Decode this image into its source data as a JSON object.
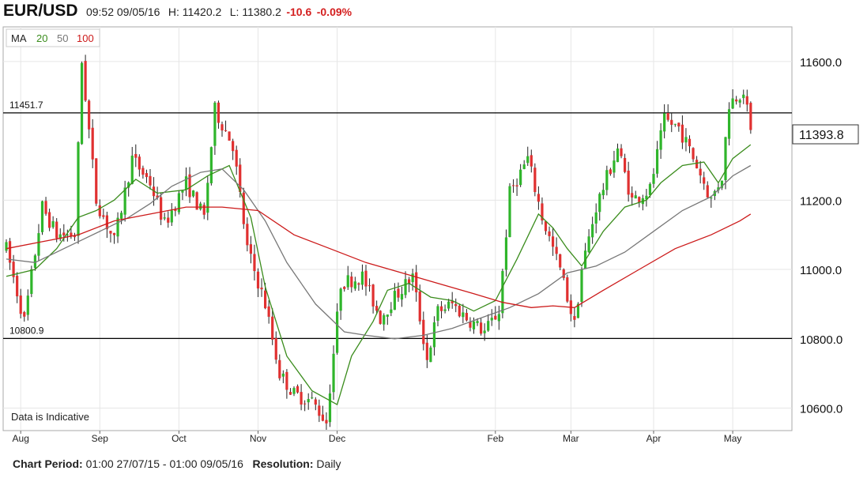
{
  "header": {
    "symbol": "EUR/USD",
    "time": "09:52 09/05/16",
    "high": "H: 11420.2",
    "low": "L: 11380.2",
    "change": "-10.6",
    "change_pct": "-0.09%"
  },
  "legend": {
    "label": "MA",
    "ma20": "20",
    "ma50": "50",
    "ma100": "100",
    "ma20_color": "#3a8c1c",
    "ma50_color": "#777777",
    "ma100_color": "#cc1a1a"
  },
  "indicative_note": "Data is Indicative",
  "footer": {
    "period_label": "Chart Period:",
    "period_value": "01:00 27/07/15 - 01:00 09/05/16",
    "resolution_label": "Resolution:",
    "resolution_value": "Daily"
  },
  "chart_data": {
    "type": "candlestick",
    "symbol": "EUR/USD",
    "y_ticks": [
      "11600.0",
      "11200.0",
      "11000.0",
      "10800.0",
      "10600.0"
    ],
    "y_tick_values": [
      11600,
      11200,
      11000,
      10800,
      10600
    ],
    "ylim": [
      10535,
      11700
    ],
    "last_price": "11393.8",
    "x_labels": [
      "Aug",
      "Sep",
      "Oct",
      "Nov",
      "Dec",
      "Feb",
      "Mar",
      "Apr",
      "May"
    ],
    "x_label_day_index": [
      4,
      26,
      48,
      70,
      92,
      136,
      157,
      180,
      202
    ],
    "total_days": 215,
    "horizontal_lines": [
      {
        "label": "11451.7",
        "value": 11451.7
      },
      {
        "label": "10800.9",
        "value": 10800.9
      }
    ],
    "colors": {
      "up": "#2fb52b",
      "down": "#e03030",
      "wick": "#222222",
      "grid": "#e6e6e6",
      "line": "#000000"
    },
    "anchors": [
      [
        0,
        11060
      ],
      [
        5,
        10850
      ],
      [
        10,
        11180
      ],
      [
        14,
        11100
      ],
      [
        19,
        11100
      ],
      [
        21,
        11600
      ],
      [
        25,
        11200
      ],
      [
        30,
        11080
      ],
      [
        35,
        11320
      ],
      [
        40,
        11250
      ],
      [
        44,
        11130
      ],
      [
        50,
        11250
      ],
      [
        55,
        11150
      ],
      [
        58,
        11460
      ],
      [
        63,
        11360
      ],
      [
        67,
        11060
      ],
      [
        72,
        10900
      ],
      [
        76,
        10700
      ],
      [
        80,
        10640
      ],
      [
        85,
        10620
      ],
      [
        89,
        10560
      ],
      [
        93,
        10960
      ],
      [
        99,
        10980
      ],
      [
        104,
        10860
      ],
      [
        108,
        10920
      ],
      [
        113,
        10980
      ],
      [
        117,
        10740
      ],
      [
        120,
        10880
      ],
      [
        124,
        10900
      ],
      [
        128,
        10860
      ],
      [
        133,
        10820
      ],
      [
        137,
        10880
      ],
      [
        140,
        11220
      ],
      [
        145,
        11320
      ],
      [
        149,
        11150
      ],
      [
        154,
        11000
      ],
      [
        158,
        10840
      ],
      [
        160,
        11000
      ],
      [
        164,
        11180
      ],
      [
        170,
        11350
      ],
      [
        174,
        11200
      ],
      [
        179,
        11230
      ],
      [
        183,
        11430
      ],
      [
        187,
        11410
      ],
      [
        192,
        11300
      ],
      [
        196,
        11200
      ],
      [
        199,
        11270
      ],
      [
        201,
        11480
      ],
      [
        205,
        11520
      ],
      [
        207,
        11393.8
      ]
    ],
    "ma": {
      "ma20": {
        "name": "20",
        "points": [
          [
            0,
            10980
          ],
          [
            8,
            11000
          ],
          [
            14,
            11060
          ],
          [
            20,
            11150
          ],
          [
            25,
            11170
          ],
          [
            30,
            11200
          ],
          [
            36,
            11260
          ],
          [
            42,
            11220
          ],
          [
            50,
            11230
          ],
          [
            56,
            11270
          ],
          [
            62,
            11300
          ],
          [
            68,
            11150
          ],
          [
            72,
            10950
          ],
          [
            78,
            10750
          ],
          [
            85,
            10650
          ],
          [
            92,
            10610
          ],
          [
            96,
            10750
          ],
          [
            102,
            10850
          ],
          [
            106,
            10940
          ],
          [
            112,
            10960
          ],
          [
            118,
            10920
          ],
          [
            124,
            10910
          ],
          [
            130,
            10880
          ],
          [
            136,
            10910
          ],
          [
            142,
            11030
          ],
          [
            148,
            11160
          ],
          [
            152,
            11120
          ],
          [
            156,
            11060
          ],
          [
            160,
            11010
          ],
          [
            166,
            11110
          ],
          [
            172,
            11180
          ],
          [
            178,
            11200
          ],
          [
            182,
            11250
          ],
          [
            188,
            11300
          ],
          [
            194,
            11310
          ],
          [
            198,
            11250
          ],
          [
            202,
            11320
          ],
          [
            207,
            11360
          ]
        ]
      },
      "ma50": {
        "name": "50",
        "points": [
          [
            0,
            11030
          ],
          [
            8,
            11020
          ],
          [
            16,
            11060
          ],
          [
            22,
            11090
          ],
          [
            28,
            11120
          ],
          [
            34,
            11150
          ],
          [
            40,
            11190
          ],
          [
            46,
            11240
          ],
          [
            54,
            11280
          ],
          [
            60,
            11290
          ],
          [
            66,
            11230
          ],
          [
            72,
            11140
          ],
          [
            78,
            11020
          ],
          [
            86,
            10900
          ],
          [
            94,
            10820
          ],
          [
            100,
            10810
          ],
          [
            108,
            10800
          ],
          [
            116,
            10810
          ],
          [
            124,
            10830
          ],
          [
            132,
            10860
          ],
          [
            140,
            10890
          ],
          [
            148,
            10930
          ],
          [
            156,
            10990
          ],
          [
            164,
            11010
          ],
          [
            172,
            11050
          ],
          [
            180,
            11110
          ],
          [
            188,
            11170
          ],
          [
            196,
            11210
          ],
          [
            202,
            11270
          ],
          [
            207,
            11300
          ]
        ]
      },
      "ma100": {
        "name": "100",
        "points": [
          [
            0,
            11060
          ],
          [
            10,
            11080
          ],
          [
            20,
            11100
          ],
          [
            30,
            11140
          ],
          [
            40,
            11160
          ],
          [
            50,
            11180
          ],
          [
            60,
            11180
          ],
          [
            70,
            11170
          ],
          [
            80,
            11100
          ],
          [
            90,
            11060
          ],
          [
            100,
            11020
          ],
          [
            110,
            10990
          ],
          [
            120,
            10960
          ],
          [
            130,
            10930
          ],
          [
            138,
            10905
          ],
          [
            146,
            10890
          ],
          [
            152,
            10895
          ],
          [
            158,
            10890
          ],
          [
            166,
            10940
          ],
          [
            176,
            11000
          ],
          [
            186,
            11060
          ],
          [
            196,
            11100
          ],
          [
            204,
            11140
          ],
          [
            207,
            11160
          ]
        ]
      }
    }
  }
}
